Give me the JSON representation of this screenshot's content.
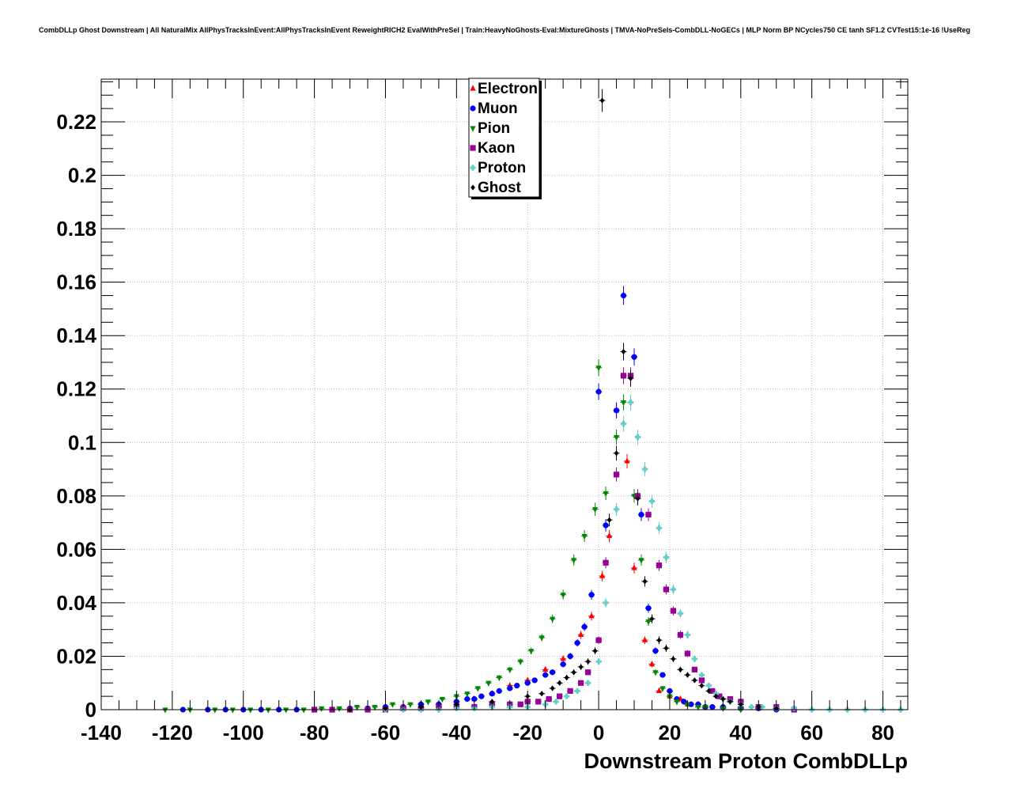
{
  "chart_data": {
    "type": "scatter",
    "title": "CombDLLp Ghost Downstream | All NaturalMix AllPhysTracksInEvent:AllPhysTracksInEvent ReweightRICH2 EvalWithPreSel | Train:HeavyNoGhosts-Eval:MixtureGhosts | TMVA-NoPreSels-CombDLL-NoGECs | MLP Norm BP NCycles750 CE tanh SF1.2 CVTest15:1e-16 !UseReg",
    "xlabel": "Downstream Proton CombDLLp",
    "ylabel": "",
    "xlim": [
      -140,
      87
    ],
    "ylim": [
      0,
      0.236
    ],
    "grid": true,
    "legend_position": "top-center",
    "x_ticks": [
      "-140",
      "-120",
      "-100",
      "-80",
      "-60",
      "-40",
      "-20",
      "0",
      "20",
      "40",
      "60",
      "80"
    ],
    "y_ticks": [
      "0",
      "0.02",
      "0.04",
      "0.06",
      "0.08",
      "0.1",
      "0.12",
      "0.14",
      "0.16",
      "0.18",
      "0.2",
      "0.22"
    ],
    "series": [
      {
        "name": "Electron",
        "color": "#ff0000",
        "marker": "triangle-up",
        "x": [
          -55,
          -50,
          -45,
          -40,
          -35,
          -30,
          -25,
          -20,
          -15,
          -10,
          -5,
          -2,
          1,
          3,
          5,
          8,
          10,
          13,
          15,
          17,
          20,
          23,
          25,
          28,
          30,
          35,
          40,
          45,
          50
        ],
        "y": [
          0.001,
          0.002,
          0.002,
          0.003,
          0.004,
          0.006,
          0.009,
          0.011,
          0.015,
          0.019,
          0.028,
          0.035,
          0.05,
          0.065,
          0.112,
          0.093,
          0.053,
          0.026,
          0.017,
          0.007,
          0.005,
          0.004,
          0.002,
          0.002,
          0.001,
          0.001,
          0.001,
          0.0005,
          0.0005
        ]
      },
      {
        "name": "Muon",
        "color": "#0000ff",
        "marker": "circle",
        "x": [
          -117,
          -110,
          -105,
          -100,
          -95,
          -90,
          -85,
          -80,
          -75,
          -70,
          -65,
          -60,
          -55,
          -50,
          -45,
          -40,
          -37,
          -35,
          -33,
          -30,
          -28,
          -25,
          -23,
          -20,
          -18,
          -15,
          -13,
          -10,
          -8,
          -6,
          -4,
          -2,
          0,
          2,
          5,
          7,
          10,
          12,
          14,
          16,
          18,
          20,
          22,
          24,
          26,
          28,
          30,
          32,
          35,
          40,
          45,
          50
        ],
        "y": [
          0,
          0,
          0,
          0,
          0,
          0,
          0,
          0,
          0,
          0.0005,
          0.0005,
          0.001,
          0.001,
          0.002,
          0.002,
          0.003,
          0.004,
          0.004,
          0.005,
          0.006,
          0.007,
          0.008,
          0.009,
          0.01,
          0.011,
          0.013,
          0.014,
          0.017,
          0.02,
          0.025,
          0.031,
          0.043,
          0.119,
          0.069,
          0.112,
          0.155,
          0.132,
          0.073,
          0.038,
          0.022,
          0.013,
          0.007,
          0.004,
          0.003,
          0.002,
          0.002,
          0.001,
          0.001,
          0.001,
          0.0005,
          0.0005,
          0
        ]
      },
      {
        "name": "Pion",
        "color": "#008800",
        "marker": "triangle-down",
        "x": [
          -122,
          -115,
          -108,
          -103,
          -98,
          -93,
          -88,
          -83,
          -78,
          -73,
          -68,
          -63,
          -58,
          -53,
          -48,
          -44,
          -40,
          -37,
          -34,
          -31,
          -28,
          -25,
          -22,
          -19,
          -16,
          -13,
          -10,
          -7,
          -4,
          -1,
          0,
          2,
          5,
          7,
          10,
          12,
          14,
          16,
          18,
          20,
          22,
          25,
          28,
          30,
          35,
          40
        ],
        "y": [
          0,
          0,
          0,
          0,
          0,
          0,
          0,
          0,
          0.0005,
          0.0005,
          0.001,
          0.001,
          0.002,
          0.002,
          0.003,
          0.004,
          0.005,
          0.006,
          0.008,
          0.01,
          0.012,
          0.015,
          0.018,
          0.022,
          0.027,
          0.034,
          0.043,
          0.056,
          0.065,
          0.075,
          0.128,
          0.081,
          0.102,
          0.115,
          0.08,
          0.056,
          0.033,
          0.014,
          0.008,
          0.005,
          0.003,
          0.002,
          0.001,
          0.001,
          0.0005,
          0
        ]
      },
      {
        "name": "Kaon",
        "color": "#990099",
        "marker": "square",
        "x": [
          -80,
          -75,
          -70,
          -65,
          -60,
          -55,
          -50,
          -45,
          -40,
          -35,
          -30,
          -25,
          -22,
          -20,
          -17,
          -14,
          -11,
          -8,
          -5,
          -3,
          0,
          2,
          5,
          7,
          9,
          11,
          14,
          17,
          19,
          21,
          23,
          25,
          27,
          29,
          32,
          34,
          37,
          40,
          45,
          50,
          55
        ],
        "y": [
          0,
          0,
          0,
          0,
          0,
          0.0005,
          0.0005,
          0.001,
          0.001,
          0.001,
          0.002,
          0.002,
          0.002,
          0.003,
          0.003,
          0.004,
          0.005,
          0.007,
          0.01,
          0.014,
          0.026,
          0.055,
          0.088,
          0.125,
          0.125,
          0.08,
          0.073,
          0.054,
          0.045,
          0.037,
          0.028,
          0.021,
          0.015,
          0.011,
          0.007,
          0.005,
          0.004,
          0.003,
          0.001,
          0.001,
          0
        ]
      },
      {
        "name": "Proton",
        "color": "#66cccc",
        "marker": "cross",
        "x": [
          -60,
          -55,
          -50,
          -45,
          -40,
          -35,
          -30,
          -25,
          -20,
          -15,
          -12,
          -9,
          -6,
          -3,
          0,
          2,
          5,
          7,
          9,
          11,
          13,
          15,
          17,
          19,
          21,
          23,
          25,
          27,
          29,
          31,
          33,
          35,
          37,
          40,
          43,
          46,
          50,
          55,
          60,
          65,
          70,
          75,
          80,
          85
        ],
        "y": [
          0,
          0,
          0,
          0,
          0.0005,
          0.0005,
          0.001,
          0.001,
          0.001,
          0.002,
          0.003,
          0.005,
          0.007,
          0.01,
          0.018,
          0.04,
          0.075,
          0.107,
          0.115,
          0.102,
          0.09,
          0.078,
          0.068,
          0.057,
          0.045,
          0.036,
          0.028,
          0.019,
          0.013,
          0.009,
          0.006,
          0.004,
          0.003,
          0.002,
          0.001,
          0.001,
          0.0005,
          0.0005,
          0,
          0,
          0,
          0,
          0,
          0
        ]
      },
      {
        "name": "Ghost",
        "color": "#000000",
        "marker": "diamond",
        "x": [
          -70,
          -60,
          -50,
          -40,
          -30,
          -20,
          -16,
          -13,
          -11,
          -9,
          -7,
          -5,
          -3,
          -1,
          1,
          3,
          5,
          7,
          9,
          11,
          13,
          15,
          17,
          19,
          21,
          23,
          25,
          27,
          29,
          31,
          33,
          35,
          37,
          40,
          45,
          50
        ],
        "y": [
          0,
          0.0005,
          0.001,
          0.002,
          0.003,
          0.005,
          0.006,
          0.008,
          0.01,
          0.012,
          0.014,
          0.016,
          0.018,
          0.022,
          0.228,
          0.071,
          0.096,
          0.134,
          0.124,
          0.079,
          0.048,
          0.034,
          0.026,
          0.023,
          0.019,
          0.015,
          0.013,
          0.011,
          0.009,
          0.007,
          0.005,
          0.004,
          0.003,
          0.002,
          0.001,
          0.0005
        ]
      }
    ]
  }
}
